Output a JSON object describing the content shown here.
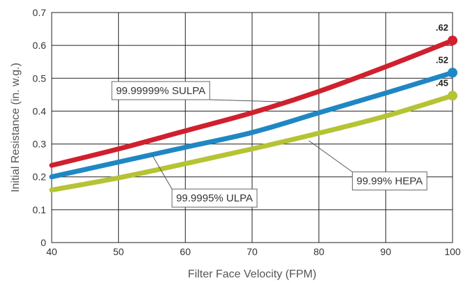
{
  "chart_data": {
    "type": "line",
    "title": "",
    "xlabel": "Filter Face Velocity (FPM)",
    "ylabel": "Initial Resistance (in. w.g.)",
    "xlim": [
      40,
      100
    ],
    "ylim": [
      0,
      0.7
    ],
    "x_ticks": [
      "40",
      "50",
      "60",
      "70",
      "80",
      "90",
      "100"
    ],
    "y_ticks": [
      "0",
      "0.1",
      "0.2",
      "0.3",
      "0.4",
      "0.5",
      "0.6",
      "0.7"
    ],
    "grid": true,
    "legend": "none",
    "series": [
      {
        "name": "99.99999% SULPA",
        "color": "#d0202e",
        "end_label": ".62",
        "x": [
          40,
          50,
          60,
          70,
          80,
          90,
          100
        ],
        "y": [
          0.235,
          0.285,
          0.34,
          0.395,
          0.46,
          0.535,
          0.615
        ]
      },
      {
        "name": "99.99% HEPA",
        "color": "#1f87c4",
        "end_label": ".52",
        "x": [
          40,
          50,
          60,
          70,
          80,
          90,
          100
        ],
        "y": [
          0.2,
          0.245,
          0.29,
          0.335,
          0.395,
          0.455,
          0.517
        ]
      },
      {
        "name": "99.9995% ULPA",
        "color": "#b5c334",
        "end_label": ".45",
        "x": [
          40,
          50,
          60,
          70,
          80,
          90,
          100
        ],
        "y": [
          0.16,
          0.197,
          0.24,
          0.285,
          0.333,
          0.385,
          0.447
        ]
      }
    ],
    "callouts": [
      {
        "series": 0,
        "text": "99.99999% SULPA",
        "anchor_x": 75,
        "anchor_y": 0.428,
        "box_x": 49,
        "box_y": 0.49
      },
      {
        "series": 1,
        "text": "99.99% HEPA",
        "anchor_x": 78.5,
        "anchor_y": 0.31,
        "box_x": 85,
        "box_y": 0.215
      },
      {
        "series": 2,
        "text": "99.9995% ULPA",
        "anchor_x": 55,
        "anchor_y": 0.268,
        "box_x": 58,
        "box_y": 0.163
      }
    ]
  }
}
